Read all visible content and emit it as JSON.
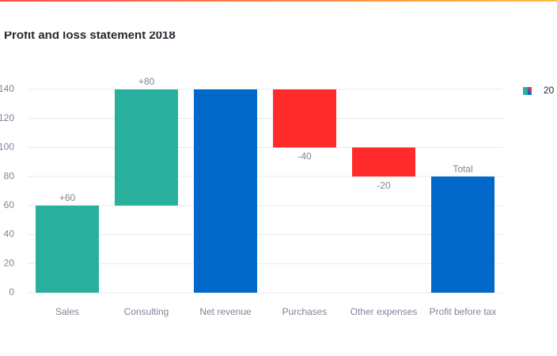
{
  "chart_data": {
    "type": "waterfall",
    "title": "Profit and loss statement 2018",
    "categories": [
      "Sales",
      "Consulting",
      "Net revenue",
      "Purchases",
      "Other expenses",
      "Profit before tax"
    ],
    "series": [
      {
        "name": "20",
        "values": [
          60,
          80,
          140,
          -40,
          -20,
          80
        ],
        "value_labels": [
          "+60",
          "+80",
          null,
          "-40",
          "-20",
          "Total"
        ],
        "measure": [
          "relative",
          "relative",
          "total",
          "relative",
          "relative",
          "total"
        ],
        "colors": {
          "increasing": "#29b09d",
          "decreasing": "#ff2b2b",
          "total": "#0068c9"
        }
      }
    ],
    "ylim": [
      0,
      140
    ],
    "yticks": [
      0,
      20,
      40,
      60,
      80,
      100,
      120,
      140
    ],
    "grid": true,
    "legend": "right"
  }
}
